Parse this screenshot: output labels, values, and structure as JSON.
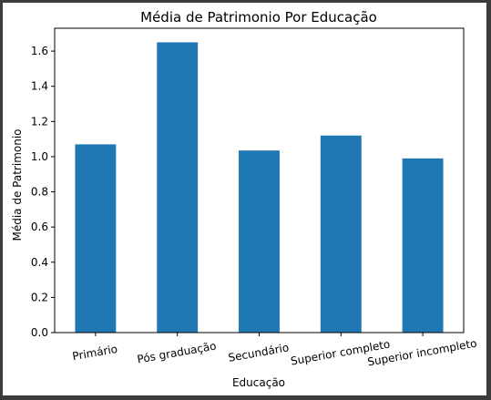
{
  "chart_data": {
    "type": "bar",
    "title": "Média de Patrimonio Por Educação",
    "xlabel": "Educação",
    "ylabel": "Média de Patrimonio",
    "categories": [
      "Primário",
      "Pós graduação",
      "Secundário",
      "Superior completo",
      "Superior incompleto"
    ],
    "values": [
      1.07,
      1.65,
      1.035,
      1.12,
      0.99
    ],
    "ylim": [
      0,
      1.73
    ],
    "yticks": [
      "0.0",
      "0.2",
      "0.4",
      "0.6",
      "0.8",
      "1.0",
      "1.2",
      "1.4",
      "1.6"
    ],
    "bar_color": "#1f77b4",
    "grid": false
  }
}
